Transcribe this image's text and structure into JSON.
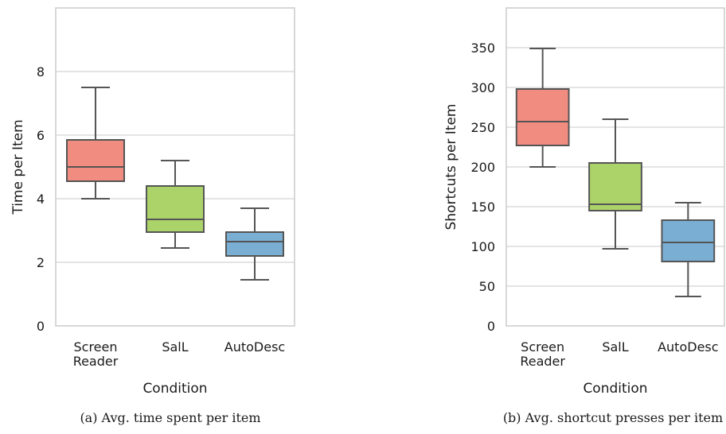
{
  "chart_data": [
    {
      "type": "box",
      "caption": "(a) Avg. time spent per item",
      "xlabel": "Condition",
      "ylabel": "Time per Item",
      "ylim": [
        0,
        10
      ],
      "yticks": [
        0,
        2,
        4,
        6,
        8
      ],
      "grid": "horizontal",
      "categories": [
        [
          "Screen",
          "Reader"
        ],
        [
          "SalL"
        ],
        [
          "AutoDesc"
        ]
      ],
      "colors": [
        "#f08c80",
        "#acd36a",
        "#7aaed3"
      ],
      "boxes": [
        {
          "whisker_low": 4.0,
          "q1": 4.55,
          "median": 5.0,
          "q3": 5.85,
          "whisker_high": 7.5
        },
        {
          "whisker_low": 2.45,
          "q1": 2.95,
          "median": 3.35,
          "q3": 4.4,
          "whisker_high": 5.2
        },
        {
          "whisker_low": 1.45,
          "q1": 2.2,
          "median": 2.65,
          "q3": 2.95,
          "whisker_high": 3.7
        }
      ]
    },
    {
      "type": "box",
      "caption": "(b) Avg. shortcut presses per item",
      "xlabel": "Condition",
      "ylabel": "Shortcuts per Item",
      "ylim": [
        0,
        400
      ],
      "yticks": [
        0,
        50,
        100,
        150,
        200,
        250,
        300,
        350
      ],
      "grid": "horizontal",
      "categories": [
        [
          "Screen",
          "Reader"
        ],
        [
          "SalL"
        ],
        [
          "AutoDesc"
        ]
      ],
      "colors": [
        "#f08c80",
        "#acd36a",
        "#7aaed3"
      ],
      "boxes": [
        {
          "whisker_low": 200,
          "q1": 227,
          "median": 257,
          "q3": 298,
          "whisker_high": 349
        },
        {
          "whisker_low": 97,
          "q1": 145,
          "median": 153,
          "q3": 205,
          "whisker_high": 260
        },
        {
          "whisker_low": 37,
          "q1": 81,
          "median": 105,
          "q3": 133,
          "whisker_high": 155
        }
      ]
    }
  ]
}
